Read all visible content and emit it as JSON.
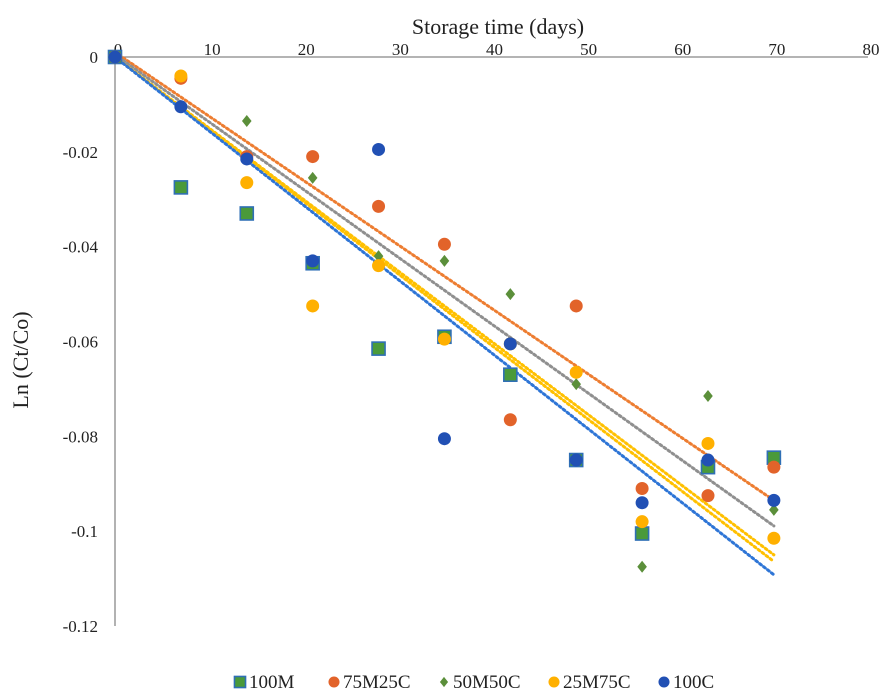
{
  "chart_data": {
    "type": "scatter",
    "xlabel": "Storage time  (days)",
    "ylabel": "Ln (Ct/Co)",
    "xlim": [
      0,
      80
    ],
    "ylim": [
      -0.12,
      0
    ],
    "x_axis_position": "top",
    "x_ticks": [
      0,
      10,
      20,
      30,
      40,
      50,
      60,
      70,
      80
    ],
    "y_ticks": [
      0,
      -0.02,
      -0.04,
      -0.06,
      -0.08,
      -0.1,
      -0.12
    ],
    "x_tick_labels": [
      "0",
      "10",
      "20",
      "30",
      "40",
      "50",
      "60",
      "70",
      "80"
    ],
    "y_tick_labels": [
      "0",
      "-0.02",
      "-0.04",
      "-0.06",
      "-0.08",
      "-0.1",
      "-0.12"
    ],
    "grid": false,
    "legend_position": "bottom",
    "trendlines": "linear, dotted",
    "series": [
      {
        "name": "100M",
        "marker": "square",
        "color": "#4a9a3a",
        "edge_color": "#2f6fb5",
        "x": [
          0,
          7,
          14,
          21,
          28,
          35,
          42,
          49,
          56,
          63,
          70
        ],
        "y": [
          0,
          -0.0275,
          -0.033,
          -0.0435,
          -0.0615,
          -0.059,
          -0.067,
          -0.085,
          -0.1005,
          -0.0865,
          -0.0845
        ],
        "trend": [
          0,
          -0.00152
        ]
      },
      {
        "name": "75M25C",
        "marker": "circle",
        "color": "#e2632a",
        "x": [
          0,
          7,
          14,
          21,
          28,
          35,
          42,
          49,
          56,
          63,
          70
        ],
        "y": [
          0,
          -0.0045,
          -0.021,
          -0.021,
          -0.0315,
          -0.0395,
          -0.0765,
          -0.0525,
          -0.091,
          -0.0925,
          -0.0865
        ],
        "trend": [
          0.001,
          -0.00135
        ]
      },
      {
        "name": "50M50C",
        "marker": "diamond",
        "color": "#5b8f3a",
        "x": [
          0,
          7,
          14,
          21,
          28,
          35,
          42,
          49,
          56,
          63,
          70
        ],
        "y": [
          0,
          -0.0105,
          -0.0135,
          -0.0255,
          -0.042,
          -0.043,
          -0.05,
          -0.069,
          -0.1075,
          -0.0715,
          -0.0955
        ],
        "trend": [
          0.0005,
          -0.00142
        ]
      },
      {
        "name": "25M75C",
        "marker": "circle",
        "color": "#ffb000",
        "x": [
          0,
          7,
          14,
          21,
          28,
          35,
          42,
          49,
          56,
          63,
          70
        ],
        "y": [
          0,
          -0.004,
          -0.0265,
          -0.0525,
          -0.044,
          -0.0595,
          -0.0605,
          -0.0665,
          -0.098,
          -0.0815,
          -0.1015
        ],
        "trend": [
          0,
          -0.0015
        ]
      },
      {
        "name": "100C",
        "marker": "circle",
        "color": "#2150b4",
        "x": [
          0,
          7,
          14,
          21,
          28,
          35,
          42,
          49,
          56,
          63,
          70
        ],
        "y": [
          0,
          -0.0105,
          -0.0215,
          -0.043,
          -0.0195,
          -0.0805,
          -0.0605,
          -0.085,
          -0.094,
          -0.085,
          -0.0935
        ],
        "trend": [
          0,
          -0.00156
        ]
      }
    ],
    "trend_colors": [
      "#ffc000",
      "#ed7d31",
      "#8f8f8f",
      "#ffc000",
      "#2e75d6"
    ]
  }
}
